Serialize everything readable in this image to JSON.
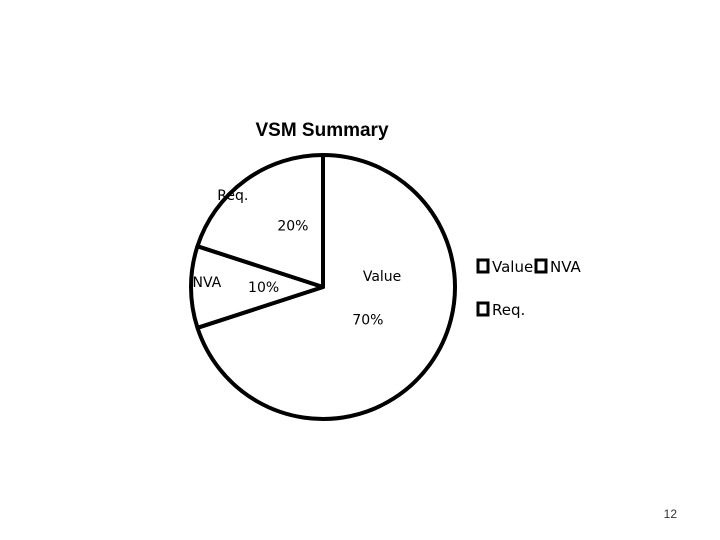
{
  "chart_data": {
    "type": "pie",
    "title": "VSM Summary",
    "slices": [
      {
        "label": "Value",
        "value": 70,
        "value_label": "70%",
        "color": "#ffffff"
      },
      {
        "label": "NVA",
        "value": 10,
        "value_label": "10%",
        "color": "#ffffff"
      },
      {
        "label": "Req.",
        "value": 20,
        "value_label": "20%",
        "color": "#ffffff"
      }
    ],
    "legend": {
      "position": "right",
      "entries": [
        "Value",
        "NVA",
        "Req."
      ]
    }
  },
  "slide": {
    "page_number": "12"
  }
}
